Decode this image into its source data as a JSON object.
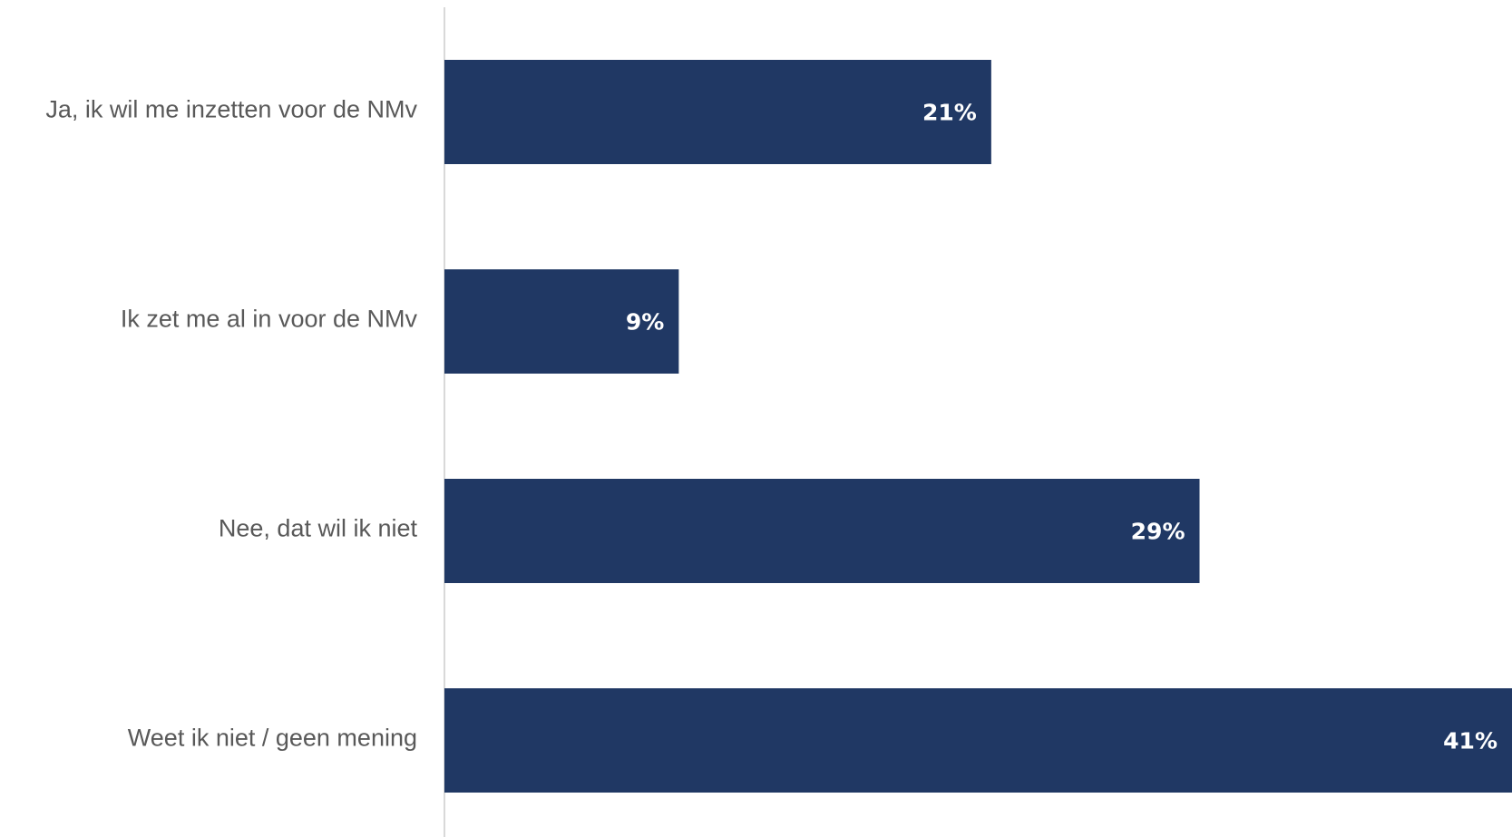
{
  "chart_data": {
    "type": "bar",
    "orientation": "horizontal",
    "categories": [
      "Ja, ik wil me inzetten voor de NMv",
      "Ik zet me al in voor de NMv",
      "Nee, dat wil ik niet",
      "Weet ik niet / geen mening"
    ],
    "values": [
      21,
      9,
      29,
      41
    ],
    "data_labels": [
      "21%",
      "9%",
      "29%",
      "41%"
    ],
    "unit": "%",
    "xlim": [
      0,
      41
    ],
    "grid": false,
    "legend": "none",
    "colors": {
      "bar": "#203864",
      "axis": "#d9d9d9",
      "category_text": "#595959",
      "data_label_text": "#ffffff"
    }
  }
}
